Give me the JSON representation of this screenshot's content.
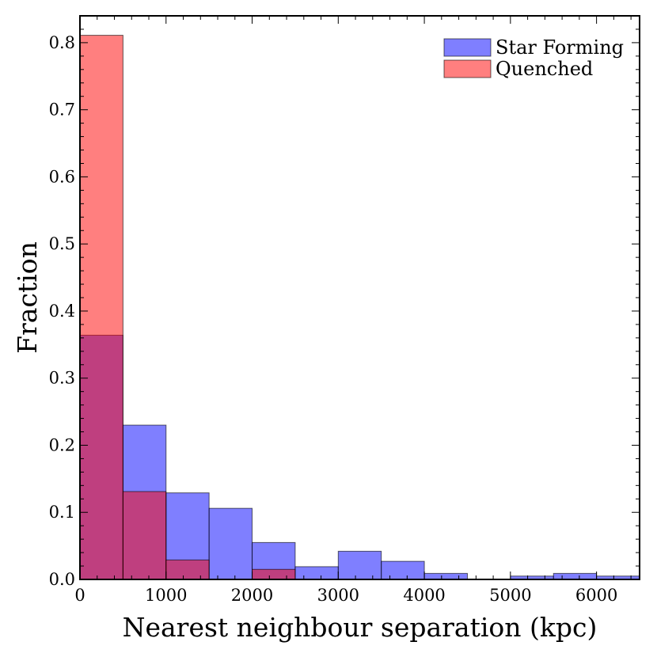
{
  "chart_data": {
    "type": "bar",
    "xlabel": "Nearest neighbour separation (kpc)",
    "ylabel": "Fraction",
    "xlim": [
      0,
      6500
    ],
    "ylim": [
      0,
      0.84
    ],
    "bin_width": 500,
    "bin_edges": [
      0,
      500,
      1000,
      1500,
      2000,
      2500,
      3000,
      3500,
      4000,
      4500,
      5000,
      5500,
      6000,
      6500
    ],
    "x_ticks": [
      0,
      1000,
      2000,
      3000,
      4000,
      5000,
      6000
    ],
    "x_tick_labels": [
      "0",
      "1000",
      "2000",
      "3000",
      "4000",
      "5000",
      "6000"
    ],
    "y_ticks": [
      0.0,
      0.1,
      0.2,
      0.3,
      0.4,
      0.5,
      0.6,
      0.7,
      0.8
    ],
    "y_tick_labels": [
      "0.0",
      "0.1",
      "0.2",
      "0.3",
      "0.4",
      "0.5",
      "0.6",
      "0.7",
      "0.8"
    ],
    "grid": false,
    "legend_position": "top-right",
    "series": [
      {
        "name": "Star Forming",
        "color": "#0000ff",
        "opacity": 0.5,
        "values": [
          0.364,
          0.23,
          0.129,
          0.106,
          0.055,
          0.019,
          0.042,
          0.027,
          0.009,
          0.0,
          0.005,
          0.009,
          0.005
        ]
      },
      {
        "name": "Quenched",
        "color": "#ff0000",
        "opacity": 0.5,
        "values": [
          0.811,
          0.131,
          0.029,
          0.0,
          0.015,
          0.0,
          0.0,
          0.0,
          0.0,
          0.0,
          0.0,
          0.0,
          0.0
        ]
      }
    ]
  }
}
